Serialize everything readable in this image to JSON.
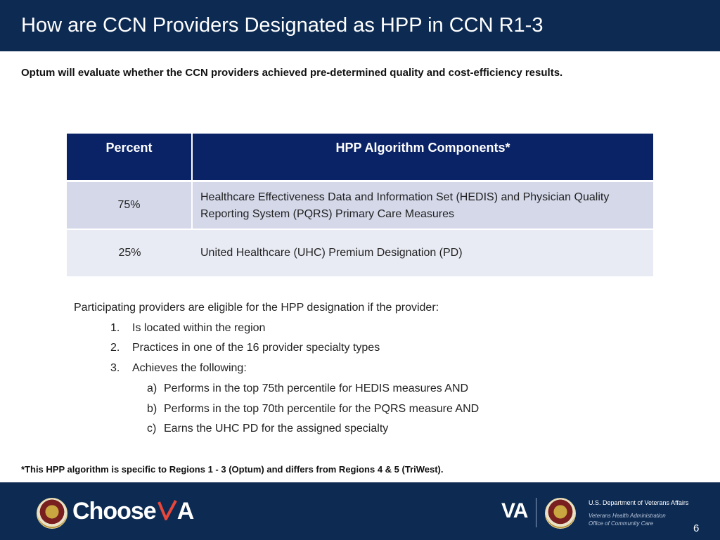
{
  "header": {
    "title": "How are CCN Providers Designated as HPP in CCN R1-3"
  },
  "subtitle": "Optum will evaluate whether the CCN providers achieved pre-determined quality and cost-efficiency results.",
  "table": {
    "headers": [
      "Percent",
      "HPP Algorithm Components*"
    ],
    "rows": [
      {
        "percent": "75%",
        "component": "Healthcare Effectiveness Data and Information Set (HEDIS) and Physician Quality Reporting System (PQRS) Primary Care Measures"
      },
      {
        "percent": "25%",
        "component": "United Healthcare (UHC) Premium Designation (PD)"
      }
    ]
  },
  "eligibility": {
    "lead": "Participating providers are eligible for the HPP designation if the provider:",
    "items": [
      {
        "marker": "1.",
        "text": "Is located within the region"
      },
      {
        "marker": "2.",
        "text": "Practices in one of the 16 provider specialty types"
      },
      {
        "marker": "3.",
        "text": "Achieves the following:"
      }
    ],
    "subitems": [
      {
        "marker": "a)",
        "text": "Performs in the top 75th percentile for HEDIS measures AND"
      },
      {
        "marker": "b)",
        "text": "Performs in the top 70th percentile for the PQRS measure AND"
      },
      {
        "marker": "c)",
        "text": "Earns the UHC PD for the assigned specialty"
      }
    ]
  },
  "footnote": "*This HPP algorithm is specific to Regions 1 - 3 (Optum) and differs from Regions 4 & 5 (TriWest).",
  "footer": {
    "brand_text": "Choose",
    "brand_accent": "A",
    "va_logo": "VA",
    "department": "U.S. Department of Veterans Affairs",
    "dept_line1": "Veterans Health Administration",
    "dept_line2": "Office of Community Care",
    "page_number": "6",
    "seal_icon": "va-seal-icon",
    "accent_color": "#e8473a"
  },
  "colors": {
    "header_bg": "#0c2a52",
    "table_header_bg": "#0a2367",
    "row1_bg": "#d4d8e9",
    "row2_bg": "#e9ebf4"
  }
}
